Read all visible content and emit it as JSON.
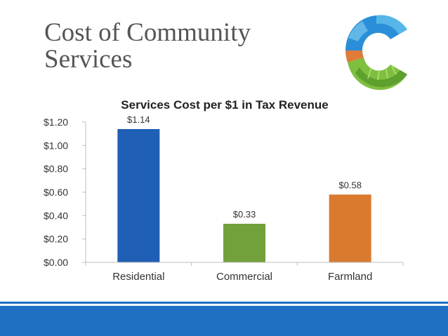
{
  "slide": {
    "title_line1": "Cost of Community",
    "title_line2": "Services"
  },
  "logo": {
    "icon": "c-logo-icon",
    "colors": [
      "#2a8fd8",
      "#56b6e8",
      "#e07b39",
      "#7fbf3f"
    ]
  },
  "colors": {
    "footer": "#1f6fc3",
    "title": "#555555"
  },
  "chart_data": {
    "type": "bar",
    "title": "Services Cost per $1 in Tax Revenue",
    "categories": [
      "Residential",
      "Commercial",
      "Farmland"
    ],
    "values": [
      1.14,
      0.33,
      0.58
    ],
    "value_labels": [
      "$1.14",
      "$0.33",
      "$0.58"
    ],
    "colors": [
      "#1f5fb5",
      "#72a13c",
      "#d97a2f"
    ],
    "ylim": [
      0,
      1.2
    ],
    "yticks": [
      0,
      0.2,
      0.4,
      0.6,
      0.8,
      1.0,
      1.2
    ],
    "ytick_labels": [
      "$0.00",
      "$0.20",
      "$0.40",
      "$0.60",
      "$0.80",
      "$1.00",
      "$1.20"
    ],
    "xlabel": "",
    "ylabel": "",
    "grid": false,
    "legend": false
  }
}
